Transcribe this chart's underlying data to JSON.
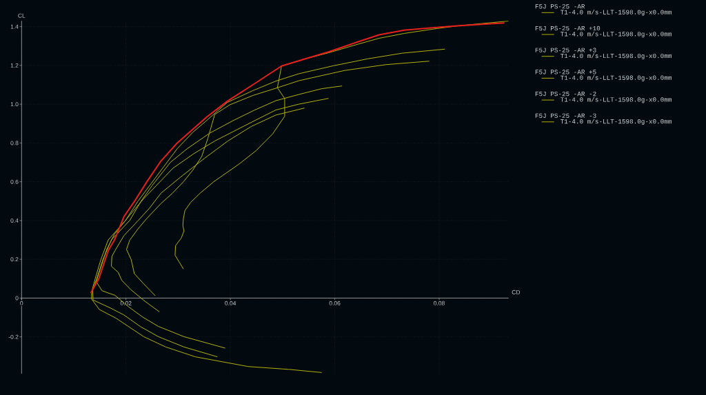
{
  "chart_data": {
    "type": "line",
    "xlabel": "CD",
    "ylabel": "CL",
    "xlim": [
      0,
      0.0933
    ],
    "ylim": [
      -0.39,
      1.43
    ],
    "xticks": [
      0,
      0.02,
      0.04,
      0.06,
      0.08
    ],
    "yticks": [
      -0.2,
      0,
      0.2,
      0.4,
      0.6,
      0.8,
      {
        "value": 1,
        "label": "1.0"
      },
      1.2,
      1.4
    ],
    "grid": true,
    "legend": "right",
    "annotations": [
      "T1-4.0 m/s-LLT-1598.0g-x0.0mm",
      "T1-4.0 m/s-LLT-1598.0g-x0.0mm",
      "T1-4.0 m/s-LLT-1598.0g-x0.0mm",
      "T1-4.0 m/s-LLT-1598.0g-x0.0mm",
      "T1-4.0 m/s-LLT-1598.0g-x0.0mm",
      "T1-4.0 m/s-LLT-1598.0g-x0.0mm"
    ],
    "series": [
      {
        "name": "F5J PS-25 -AR",
        "color": "#b4b000",
        "x": [
          0.031,
          0.0294,
          0.0295,
          0.0306,
          0.0311,
          0.0309,
          0.031,
          0.0313,
          0.0324,
          0.0342,
          0.0368,
          0.0416,
          0.0449,
          0.0481,
          0.0504,
          0.0504,
          0.049,
          0.0498,
          0.0545,
          0.0588,
          0.0645,
          0.0685,
          0.0733,
          0.0795,
          0.0839,
          0.0933
        ],
        "values": [
          0.15,
          0.221,
          0.271,
          0.31,
          0.346,
          0.375,
          0.411,
          0.452,
          0.494,
          0.541,
          0.6,
          0.69,
          0.76,
          0.847,
          0.938,
          1.029,
          1.085,
          1.197,
          1.235,
          1.265,
          1.31,
          1.34,
          1.365,
          1.39,
          1.405,
          1.429
        ]
      },
      {
        "name": "F5J PS-25 -AR +10",
        "color": "#b4b000",
        "x": [
          0.0575,
          0.0513,
          0.0434,
          0.0333,
          0.0276,
          0.0234,
          0.0181,
          0.0149,
          0.0134,
          0.0134,
          0.0141,
          0.0152,
          0.0166,
          0.0199,
          0.0223,
          0.0248,
          0.0273,
          0.0298,
          0.0328,
          0.0352,
          0.0394,
          0.0443,
          0.0487,
          0.0531,
          0.0597,
          0.0663,
          0.0729,
          0.0811
        ],
        "values": [
          -0.384,
          -0.368,
          -0.353,
          -0.303,
          -0.252,
          -0.199,
          -0.104,
          -0.059,
          -0.005,
          0.03,
          0.1,
          0.2,
          0.3,
          0.4,
          0.5,
          0.59,
          0.68,
          0.77,
          0.855,
          0.91,
          1.009,
          1.07,
          1.119,
          1.157,
          1.198,
          1.234,
          1.263,
          1.284
        ]
      },
      {
        "name": "F5J PS-25 -AR +3",
        "color": "#b4b000",
        "x": [
          0.0256,
          0.0234,
          0.0216,
          0.021,
          0.0201,
          0.0207,
          0.0223,
          0.024,
          0.0267,
          0.0289,
          0.031,
          0.0328,
          0.0345,
          0.0357,
          0.037,
          0.0399,
          0.0443,
          0.0487,
          0.0531,
          0.0619,
          0.0698,
          0.0781
        ],
        "values": [
          0.012,
          0.073,
          0.126,
          0.198,
          0.251,
          0.298,
          0.357,
          0.411,
          0.488,
          0.541,
          0.6,
          0.66,
          0.73,
          0.825,
          0.947,
          0.997,
          1.045,
          1.082,
          1.121,
          1.174,
          1.204,
          1.222
        ]
      },
      {
        "name": "F5J PS-25 -AR +5",
        "color": "#b4b000",
        "x": [
          0.0375,
          0.0311,
          0.0262,
          0.0227,
          0.0196,
          0.017,
          0.0137,
          0.0136,
          0.0144,
          0.0156,
          0.0172,
          0.0207,
          0.0229,
          0.025,
          0.0285,
          0.0317,
          0.036,
          0.0405,
          0.0445,
          0.0487,
          0.0531,
          0.0575,
          0.0614
        ],
        "values": [
          -0.303,
          -0.252,
          -0.199,
          -0.146,
          -0.087,
          -0.051,
          -0.01,
          0.04,
          0.1,
          0.2,
          0.3,
          0.4,
          0.5,
          0.58,
          0.7,
          0.77,
          0.85,
          0.915,
          0.968,
          1.018,
          1.05,
          1.08,
          1.094
        ]
      },
      {
        "name": "F5J PS-25 -AR -2",
        "color": "#b4b000",
        "x": [
          0.039,
          0.0311,
          0.0262,
          0.0232,
          0.0205,
          0.0179,
          0.0154,
          0.0143,
          0.0152,
          0.0163,
          0.0178,
          0.0205,
          0.0233,
          0.0258,
          0.029,
          0.033,
          0.037,
          0.041,
          0.045,
          0.0487,
          0.0531,
          0.0588
        ],
        "values": [
          -0.258,
          -0.199,
          -0.146,
          -0.098,
          -0.045,
          0.014,
          0.038,
          0.085,
          0.16,
          0.25,
          0.33,
          0.42,
          0.51,
          0.58,
          0.67,
          0.745,
          0.81,
          0.865,
          0.92,
          0.97,
          1.0,
          1.03
        ]
      },
      {
        "name": "F5J PS-25 -AR -3",
        "color": "#b4b000",
        "x": [
          0.0264,
          0.0236,
          0.0209,
          0.0192,
          0.0185,
          0.0172,
          0.0173,
          0.0179,
          0.0196,
          0.0223,
          0.0245,
          0.0267,
          0.0305,
          0.035,
          0.0395,
          0.044,
          0.0487,
          0.0542
        ],
        "values": [
          -0.071,
          -0.016,
          0.044,
          0.091,
          0.133,
          0.164,
          0.215,
          0.245,
          0.322,
          0.399,
          0.464,
          0.541,
          0.625,
          0.72,
          0.81,
          0.885,
          0.944,
          0.98
        ]
      },
      {
        "color": "#e8201c",
        "x": [
          0.01325,
          0.0148,
          0.0166,
          0.0178,
          0.0196,
          0.0218,
          0.024,
          0.0267,
          0.0298,
          0.0324,
          0.0355,
          0.0394,
          0.0443,
          0.0498,
          0.0545,
          0.0588,
          0.0645,
          0.0685,
          0.0733,
          0.0795,
          0.0839,
          0.0925
        ],
        "values": [
          0.026,
          0.1,
          0.245,
          0.3,
          0.42,
          0.506,
          0.6,
          0.707,
          0.8,
          0.861,
          0.935,
          1.015,
          1.1,
          1.197,
          1.235,
          1.27,
          1.322,
          1.358,
          1.382,
          1.396,
          1.405,
          1.419
        ]
      }
    ]
  }
}
